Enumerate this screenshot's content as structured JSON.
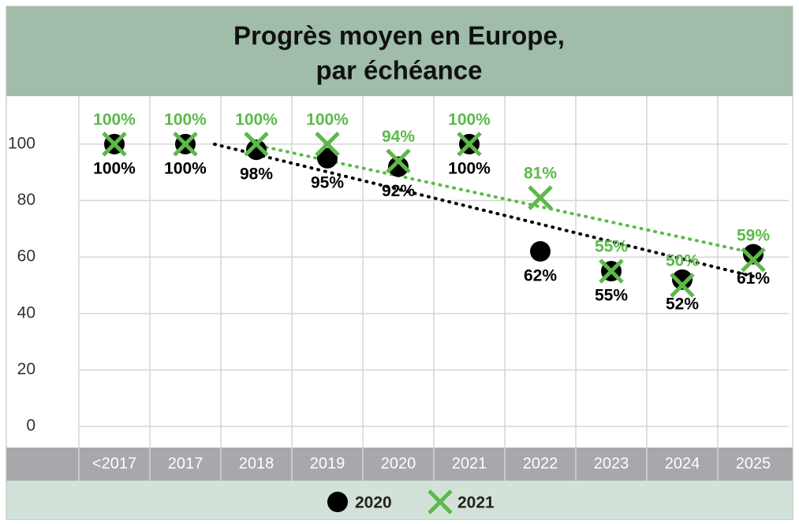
{
  "chart_data": {
    "type": "scatter",
    "title": [
      "Progrès moyen en Europe,",
      "par échéance"
    ],
    "categories": [
      "<2017",
      "2017",
      "2018",
      "2019",
      "2020",
      "2021",
      "2022",
      "2023",
      "2024",
      "2025"
    ],
    "series": [
      {
        "name": "2020",
        "color": "#000000",
        "marker": "circle",
        "values": [
          100,
          100,
          98,
          95,
          92,
          100,
          62,
          55,
          52,
          61
        ],
        "value_labels": [
          "100%",
          "100%",
          "98%",
          "95%",
          "92%",
          "100%",
          "62%",
          "55%",
          "52%",
          "61%"
        ]
      },
      {
        "name": "2021",
        "color": "#5cb94a",
        "marker": "x",
        "values": [
          100,
          100,
          100,
          100,
          94,
          100,
          81,
          55,
          50,
          59
        ],
        "value_labels": [
          "100%",
          "100%",
          "100%",
          "100%",
          "94%",
          "100%",
          "81%",
          "55%",
          "50%",
          "59%"
        ]
      }
    ],
    "ylim": [
      -7.5,
      117
    ],
    "yticks": [
      0,
      20,
      40,
      60,
      80,
      100
    ],
    "grid": true
  }
}
